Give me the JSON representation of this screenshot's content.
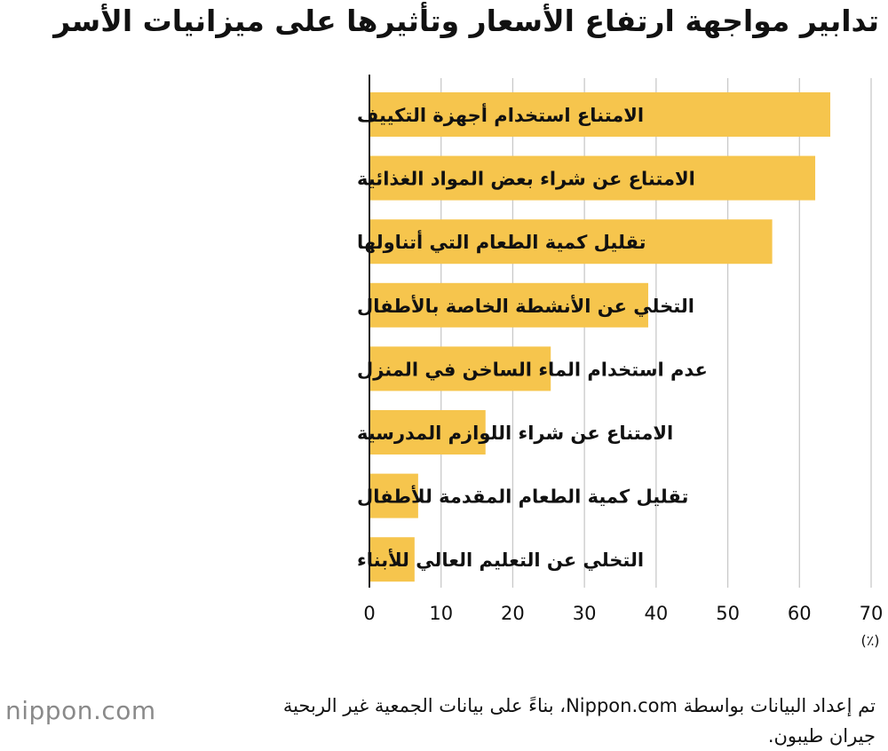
{
  "chart_data": {
    "type": "bar",
    "orientation": "horizontal",
    "title": "تدابير مواجهة ارتفاع الأسعار وتأثيرها على ميزانيات الأسر",
    "categories": [
      "الامتناع استخدام أجهزة التكييف",
      "الامتناع عن شراء بعض المواد الغذائية",
      "تقليل كمية الطعام التي أتناولها",
      "التخلي عن الأنشطة الخاصة بالأطفال",
      "عدم استخدام الماء الساخن في المنزل",
      "الامتناع عن شراء اللوازم المدرسية",
      "تقليل كمية الطعام المقدمة للأطفال",
      "التخلي عن التعليم العالي للأبناء"
    ],
    "values": [
      64.3,
      62.2,
      56.2,
      38.9,
      25.3,
      16.2,
      6.8,
      6.3
    ],
    "xlim": [
      0,
      70
    ],
    "xticks": [
      "0",
      "10",
      "20",
      "30",
      "40",
      "50",
      "60",
      "70"
    ],
    "unit_label": "(٪)",
    "grid": true,
    "bar_color": "#f6c54d"
  },
  "source_note": "تم إعداد البيانات بواسطة Nippon.com، بناءً على بيانات الجمعية غير الربحية جيران طيبون.",
  "logo": {
    "name": "nippon",
    "dot": ".",
    "suffix": "com"
  }
}
